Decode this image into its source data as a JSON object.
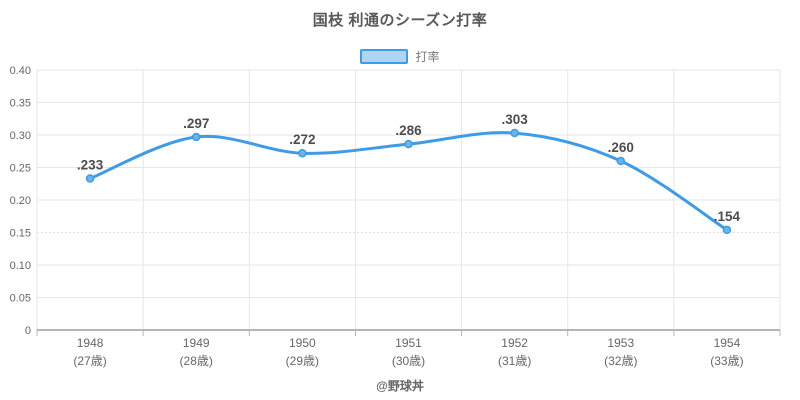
{
  "title": "国枝 利通のシーズン打率",
  "legend": {
    "label": "打率"
  },
  "footer": {
    "credit": "@野球丼"
  },
  "colors": {
    "line": "#3d9be8",
    "marker_fill": "#6ab5ee",
    "legend_fill": "#aed5f3",
    "grid": "#e6e6e6",
    "grid_dotted": "#d8d8d8",
    "axis": "#b5b5b5",
    "tick_text": "#666666",
    "point_label": "#4d4d4d",
    "title_text": "#595959"
  },
  "chart_data": {
    "type": "line",
    "title": "国枝 利通のシーズン打率",
    "legend_entries": [
      "打率"
    ],
    "legend_position": "top",
    "x": [
      "1948",
      "1949",
      "1950",
      "1951",
      "1952",
      "1953",
      "1954"
    ],
    "x_sub": [
      "(27歳)",
      "(28歳)",
      "(29歳)",
      "(30歳)",
      "(31歳)",
      "(32歳)",
      "(33歳)"
    ],
    "series": [
      {
        "name": "打率",
        "values": [
          0.233,
          0.297,
          0.272,
          0.286,
          0.303,
          0.26,
          0.154
        ]
      }
    ],
    "point_labels": [
      ".233",
      ".297",
      ".272",
      ".286",
      ".303",
      ".260",
      ".154"
    ],
    "ylim": [
      0,
      0.4
    ],
    "ytick_values": [
      0,
      0.05,
      0.1,
      0.15,
      0.2,
      0.25,
      0.3,
      0.35,
      0.4
    ],
    "ytick_labels": [
      "0",
      "0.05",
      "0.10",
      "0.15",
      "0.20",
      "0.25",
      "0.30",
      "0.35",
      "0.40"
    ],
    "dotted_gridline_value": 0.15,
    "grid": true,
    "smooth": true
  }
}
